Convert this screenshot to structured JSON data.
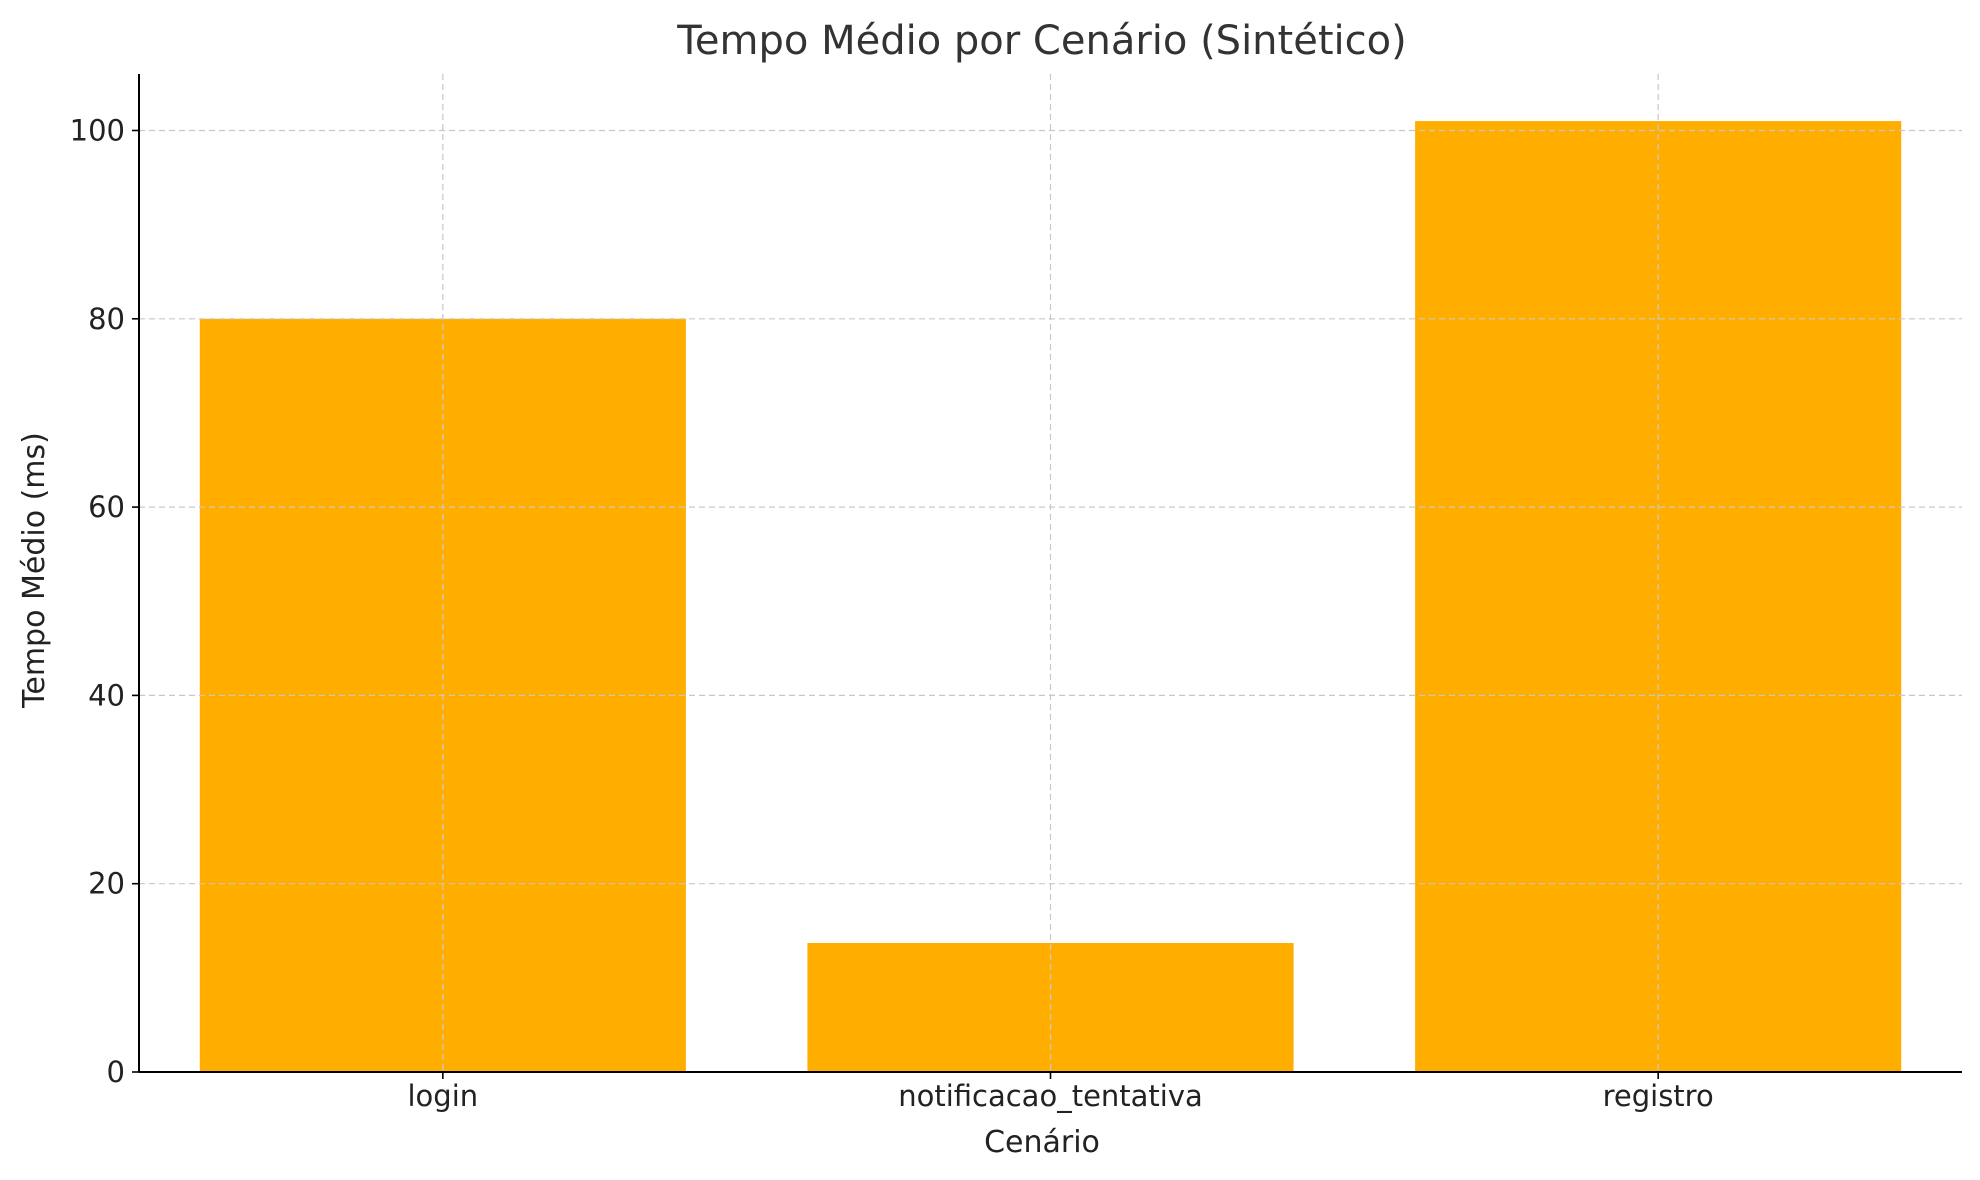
{
  "chart_data": {
    "type": "bar",
    "title": "Tempo Médio por Cenário (Sintético)",
    "xlabel": "Cenário",
    "ylabel": "Tempo Médio (ms)",
    "categories": [
      "login",
      "notificacao_tentativa",
      "registro"
    ],
    "values": [
      80,
      13.7,
      101
    ],
    "ylim": [
      0,
      106
    ],
    "yticks": [
      0,
      20,
      40,
      60,
      80,
      100
    ],
    "grid": true,
    "bar_color": "#FFAE00"
  }
}
